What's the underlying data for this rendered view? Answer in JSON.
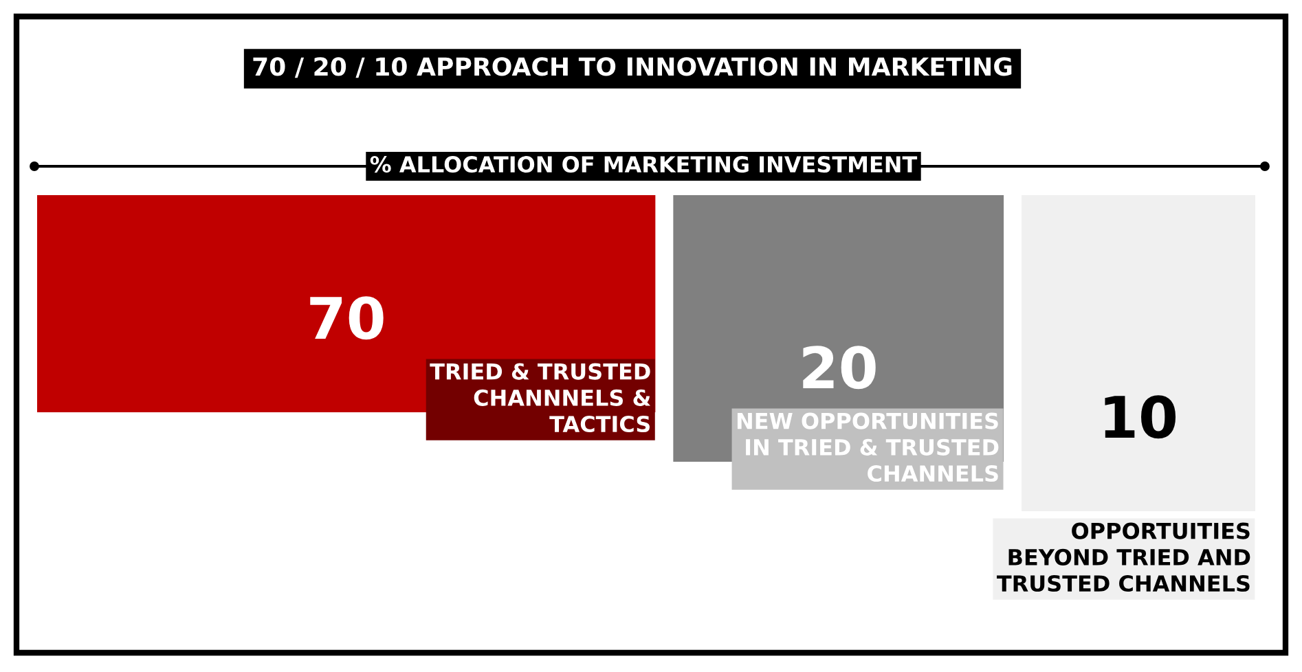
{
  "chart_data": {
    "type": "other",
    "title": "70 / 20 / 10 APPROACH TO INNOVATION IN MARKETING",
    "subtitle": "% ALLOCATION OF MARKETING INVESTMENT",
    "categories": [
      "TRIED & TRUSTED\nCHANNNELS &\nTACTICS",
      "NEW OPPORTUNITIES\nIN TRIED & TRUSTED\nCHANNELS",
      "OPPORTUITIES\nBEYOND TRIED AND\nTRUSTED CHANNELS"
    ],
    "values": [
      70,
      20,
      10
    ],
    "colors": [
      "#c00000",
      "#808080",
      "#f0f0f0"
    ],
    "data_labels": true
  }
}
